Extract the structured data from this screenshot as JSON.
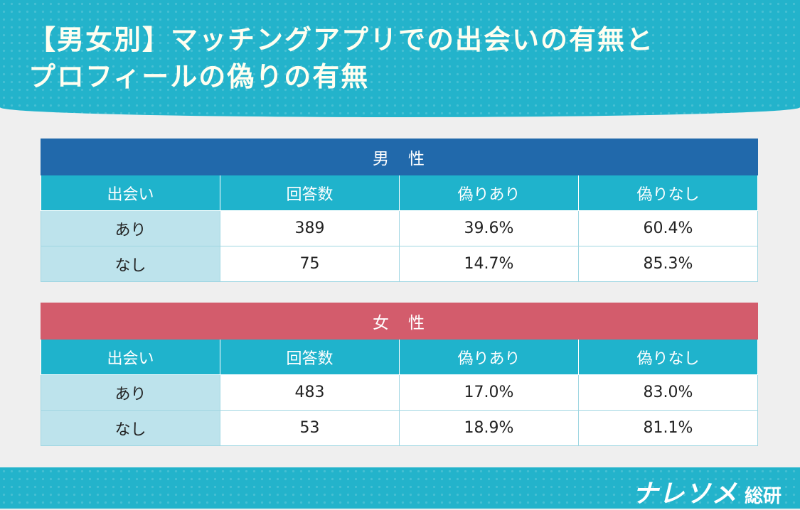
{
  "title": {
    "line1": "【男女別】マッチングアプリでの出会いの有無と",
    "line2": "プロフィールの偽りの有無"
  },
  "columns": [
    "出会い",
    "回答数",
    "偽りあり",
    "偽りなし"
  ],
  "chart_data": {
    "type": "table",
    "title": "【男女別】マッチングアプリでの出会いの有無とプロフィールの偽りの有無",
    "tables": [
      {
        "group": "男　性",
        "rows": [
          {
            "meeting": "あり",
            "responses": "389",
            "falsified": "39.6%",
            "not_falsified": "60.4%"
          },
          {
            "meeting": "なし",
            "responses": "75",
            "falsified": "14.7%",
            "not_falsified": "85.3%"
          }
        ]
      },
      {
        "group": "女　性",
        "rows": [
          {
            "meeting": "あり",
            "responses": "483",
            "falsified": "17.0%",
            "not_falsified": "83.0%"
          },
          {
            "meeting": "なし",
            "responses": "53",
            "falsified": "18.9%",
            "not_falsified": "81.1%"
          }
        ]
      }
    ]
  },
  "footer": {
    "logo_main": "ナレソメ",
    "logo_sub": "総研"
  },
  "colors": {
    "header_bg": "#23b3cb",
    "male_header": "#2169ab",
    "female_header": "#d35c6c",
    "column_header": "#1fb3cc",
    "row_header": "#bde3ec"
  }
}
